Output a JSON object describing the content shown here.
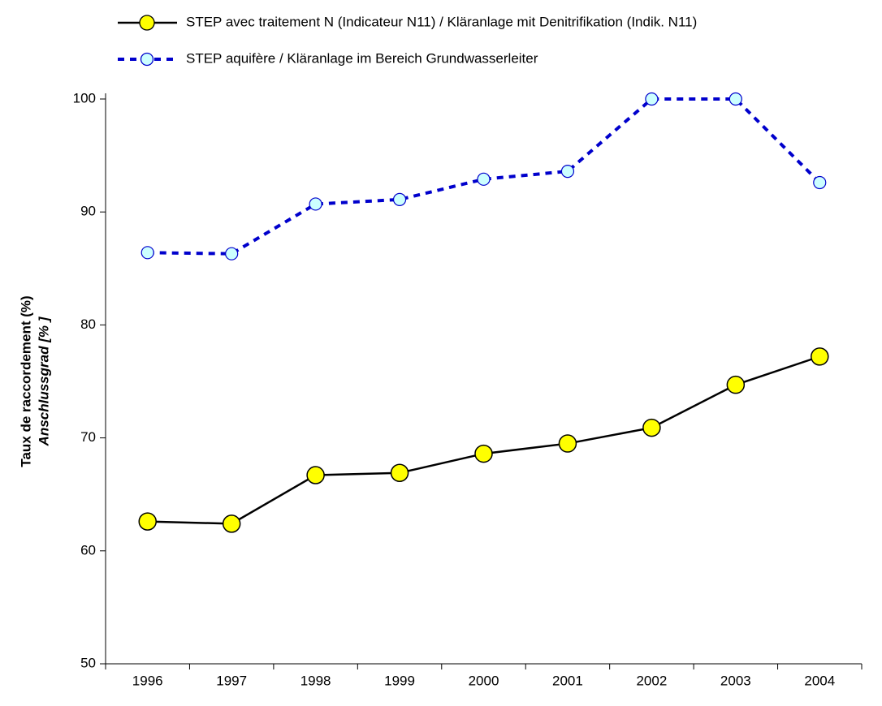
{
  "chart_data": {
    "type": "line",
    "y_label": "Taux de raccordement (%)",
    "y_label_2": "Anschlussgrad  [% ]",
    "categories": [
      "1996",
      "1997",
      "1998",
      "1999",
      "2000",
      "2001",
      "2002",
      "2003",
      "2004"
    ],
    "series": [
      {
        "name": "STEP avec traitement N (Indicateur N11) / Kläranlage mit Denitrifikation (Indik. N11)",
        "color": "#000000",
        "marker_color": "#ffff00",
        "dashed": false,
        "values": [
          62.6,
          62.4,
          66.7,
          66.9,
          68.6,
          69.5,
          70.9,
          74.7,
          77.2
        ]
      },
      {
        "name": "STEP aquifère / Kläranlage im Bereich Grundwasserleiter",
        "color": "#0000cc",
        "marker_color": "#ccffff",
        "dashed": true,
        "values": [
          86.4,
          86.3,
          90.7,
          91.1,
          92.9,
          93.6,
          100,
          100,
          92.6
        ]
      }
    ],
    "ylim": [
      50,
      100
    ],
    "yticks": [
      50,
      60,
      70,
      80,
      90,
      100
    ],
    "grid": false,
    "legend": "top"
  }
}
